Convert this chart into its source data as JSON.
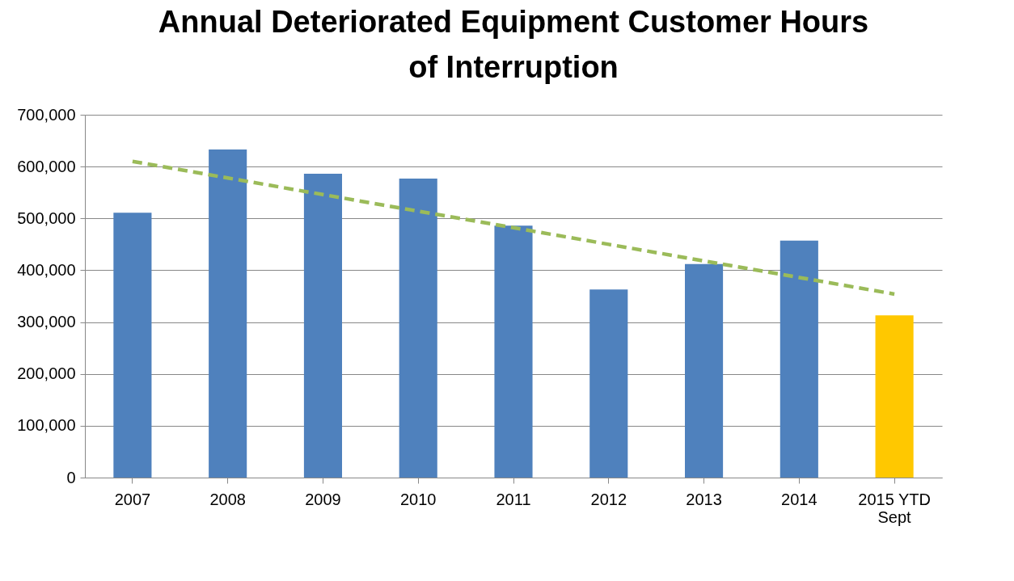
{
  "chart_data": {
    "type": "bar",
    "title": "Annual Deteriorated Equipment Customer Hours of Interruption",
    "categories": [
      "2007",
      "2008",
      "2009",
      "2010",
      "2011",
      "2012",
      "2013",
      "2014",
      "2015 YTD Sept"
    ],
    "series": [
      {
        "colors": [
          "#4f81bd",
          "#4f81bd",
          "#4f81bd",
          "#4f81bd",
          "#4f81bd",
          "#4f81bd",
          "#4f81bd",
          "#4f81bd",
          "#ffc800"
        ],
        "values": [
          511000,
          633000,
          586000,
          577000,
          486000,
          363000,
          412000,
          457000,
          313000
        ]
      },
      {
        "type": "line",
        "color": "#9bbb59",
        "line_style": "dashed",
        "marker": "none",
        "values": [
          610000,
          578000,
          546000,
          514000,
          482000,
          450000,
          418000,
          386000,
          354000
        ]
      }
    ],
    "ylim": [
      0,
      700000
    ],
    "yticks": [
      0,
      {
        "value": 100000,
        "label": "100,000"
      },
      {
        "value": 200000,
        "label": "200,000"
      },
      {
        "value": 300000,
        "label": "300,000"
      },
      {
        "value": 400000,
        "label": "400,000"
      },
      {
        "value": 500000,
        "label": "500,000"
      },
      {
        "value": 600000,
        "label": "600,000"
      },
      {
        "value": 700000,
        "label": "700,000"
      }
    ],
    "grid": "y"
  }
}
